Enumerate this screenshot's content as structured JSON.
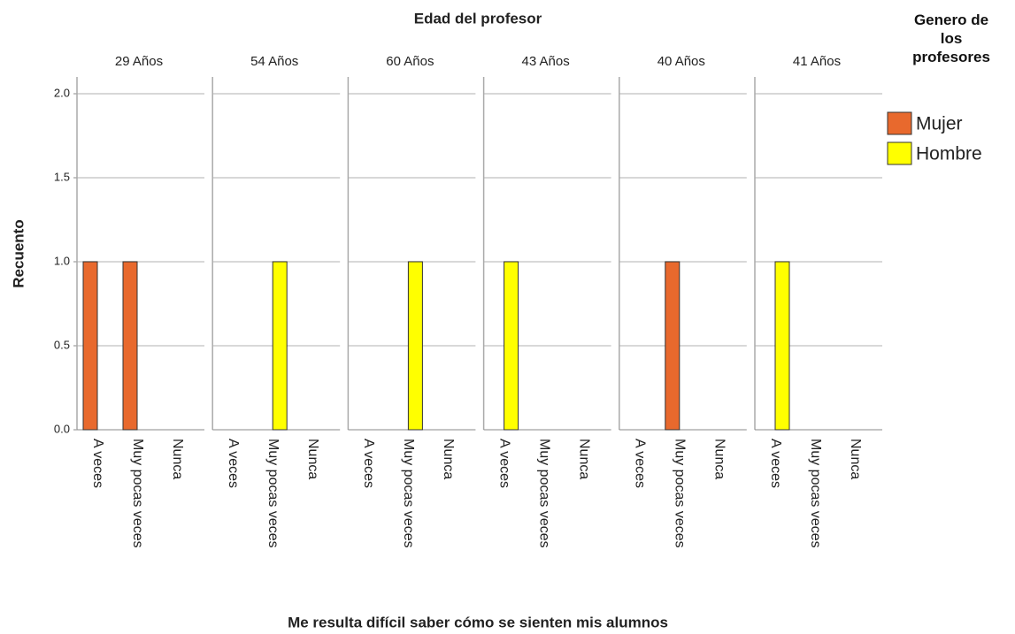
{
  "chart_data": {
    "type": "bar",
    "title": "Edad del profesor",
    "y_label": "Recuento",
    "x_label": "Me resulta difícil saber cómo se sienten mis alumnos",
    "legend_title": "Genero de los profesores",
    "panels": [
      "29 Años",
      "54 Años",
      "60 Años",
      "43 Años",
      "40 Años",
      "41 Años"
    ],
    "categories": [
      "A veces",
      "Muy pocas veces",
      "Nunca"
    ],
    "series": [
      {
        "name": "Mujer",
        "color": "#e8692d",
        "values": [
          [
            1,
            1,
            0
          ],
          [
            0,
            0,
            0
          ],
          [
            0,
            0,
            0
          ],
          [
            0,
            0,
            0
          ],
          [
            0,
            1,
            0
          ],
          [
            0,
            0,
            0
          ]
        ]
      },
      {
        "name": "Hombre",
        "color": "#ffff00",
        "values": [
          [
            0,
            0,
            0
          ],
          [
            0,
            1,
            0
          ],
          [
            0,
            1,
            0
          ],
          [
            1,
            0,
            0
          ],
          [
            0,
            0,
            0
          ],
          [
            1,
            0,
            0
          ]
        ]
      }
    ],
    "ylim": [
      0,
      2.1
    ],
    "yticks": [
      {
        "value": 0,
        "label": "0.0"
      },
      {
        "value": 0.5,
        "label": "0.5"
      },
      {
        "value": 1,
        "label": "1.0"
      },
      {
        "value": 1.5,
        "label": "1.5"
      },
      {
        "value": 2,
        "label": "2.0"
      }
    ],
    "grid": true
  }
}
